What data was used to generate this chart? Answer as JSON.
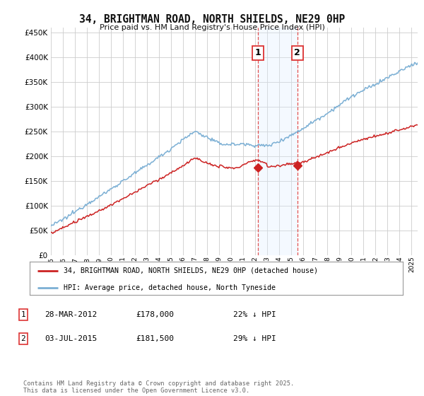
{
  "title": "34, BRIGHTMAN ROAD, NORTH SHIELDS, NE29 0HP",
  "subtitle": "Price paid vs. HM Land Registry's House Price Index (HPI)",
  "ylim": [
    0,
    460000
  ],
  "yticks": [
    0,
    50000,
    100000,
    150000,
    200000,
    250000,
    300000,
    350000,
    400000,
    450000
  ],
  "hpi_color": "#7bafd4",
  "price_color": "#cc2222",
  "shade_color": "#ddeeff",
  "vline_color": "#dd3333",
  "transaction1_date": 2012.24,
  "transaction1_price": 178000,
  "transaction2_date": 2015.5,
  "transaction2_price": 181500,
  "footnote": "Contains HM Land Registry data © Crown copyright and database right 2025.\nThis data is licensed under the Open Government Licence v3.0.",
  "legend_property": "34, BRIGHTMAN ROAD, NORTH SHIELDS, NE29 0HP (detached house)",
  "legend_hpi": "HPI: Average price, detached house, North Tyneside",
  "table_rows": [
    {
      "num": "1",
      "date": "28-MAR-2012",
      "price": "£178,000",
      "note": "22% ↓ HPI"
    },
    {
      "num": "2",
      "date": "03-JUL-2015",
      "price": "£181,500",
      "note": "29% ↓ HPI"
    }
  ],
  "background_color": "#ffffff",
  "grid_color": "#cccccc"
}
